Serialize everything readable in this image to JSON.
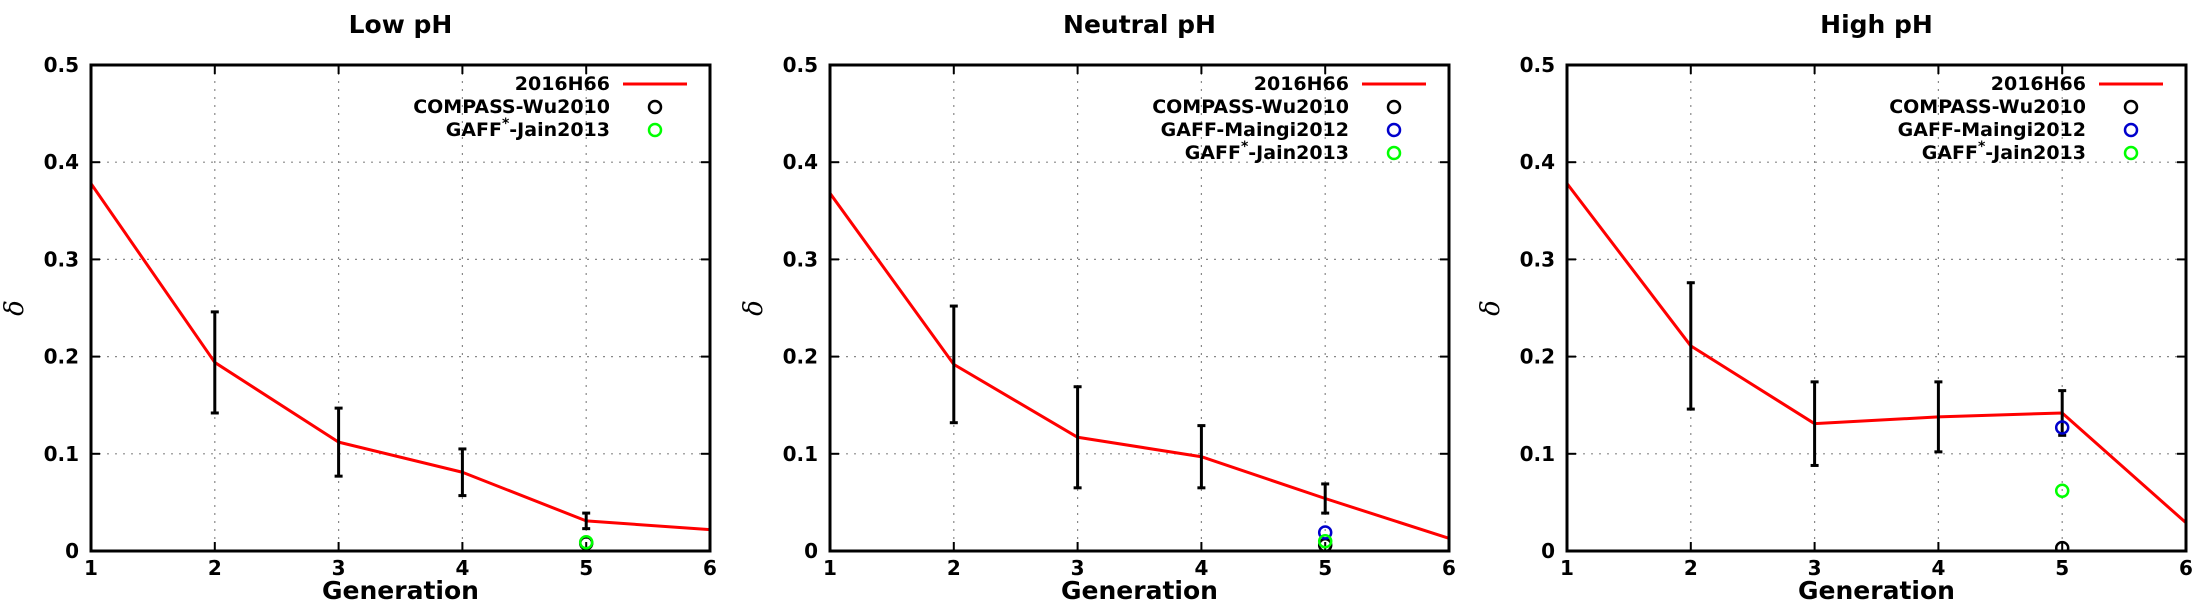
{
  "chart_data": [
    {
      "type": "line",
      "title": "Low pH",
      "xlabel": "Generation",
      "ylabel": "δ",
      "xlim": [
        1,
        6
      ],
      "ylim": [
        0,
        0.5
      ],
      "xticks": [
        "1",
        "2",
        "3",
        "4",
        "5",
        "6"
      ],
      "yticks": [
        "0",
        "0.1",
        "0.2",
        "0.3",
        "0.4",
        "0.5"
      ],
      "grid": true,
      "legend_position": "top-right",
      "series": [
        {
          "name": "2016H66",
          "kind": "line",
          "color": "#ff0000",
          "x": [
            1,
            2,
            3,
            4,
            5,
            6
          ],
          "y": [
            0.378,
            0.194,
            0.112,
            0.081,
            0.031,
            0.022
          ],
          "errors": [
            null,
            0.052,
            0.035,
            0.024,
            0.008,
            null
          ]
        },
        {
          "name": "COMPASS-Wu2010",
          "kind": "scatter",
          "color": "#000000",
          "x": [
            5
          ],
          "y": [
            0.008
          ]
        },
        {
          "name": "GAFF*-Jain2013",
          "name_base": "GAFF",
          "name_sup": "*",
          "name_rest": "-Jain2013",
          "kind": "scatter",
          "color": "#00ff00",
          "x": [
            5
          ],
          "y": [
            0.009
          ]
        }
      ]
    },
    {
      "type": "line",
      "title": "Neutral pH",
      "xlabel": "Generation",
      "ylabel": "δ",
      "xlim": [
        1,
        6
      ],
      "ylim": [
        0,
        0.5
      ],
      "xticks": [
        "1",
        "2",
        "3",
        "4",
        "5",
        "6"
      ],
      "yticks": [
        "0",
        "0.1",
        "0.2",
        "0.3",
        "0.4",
        "0.5"
      ],
      "grid": true,
      "legend_position": "top-right",
      "series": [
        {
          "name": "2016H66",
          "kind": "line",
          "color": "#ff0000",
          "x": [
            1,
            2,
            3,
            4,
            5,
            6
          ],
          "y": [
            0.368,
            0.192,
            0.117,
            0.097,
            0.054,
            0.013
          ],
          "errors": [
            null,
            0.06,
            0.052,
            0.032,
            0.015,
            null
          ]
        },
        {
          "name": "COMPASS-Wu2010",
          "kind": "scatter",
          "color": "#000000",
          "x": [
            5
          ],
          "y": [
            0.006
          ]
        },
        {
          "name": "GAFF-Maingi2012",
          "kind": "scatter",
          "color": "#0000cc",
          "x": [
            5
          ],
          "y": [
            0.019
          ]
        },
        {
          "name": "GAFF*-Jain2013",
          "name_base": "GAFF",
          "name_sup": "*",
          "name_rest": "-Jain2013",
          "kind": "scatter",
          "color": "#00ff00",
          "x": [
            5
          ],
          "y": [
            0.01
          ]
        }
      ]
    },
    {
      "type": "line",
      "title": "High pH",
      "xlabel": "Generation",
      "ylabel": "δ",
      "xlim": [
        1,
        6
      ],
      "ylim": [
        0,
        0.5
      ],
      "xticks": [
        "1",
        "2",
        "3",
        "4",
        "5",
        "6"
      ],
      "yticks": [
        "0",
        "0.1",
        "0.2",
        "0.3",
        "0.4",
        "0.5"
      ],
      "grid": true,
      "legend_position": "top-right",
      "series": [
        {
          "name": "2016H66",
          "kind": "line",
          "color": "#ff0000",
          "x": [
            1,
            2,
            3,
            4,
            5,
            6
          ],
          "y": [
            0.378,
            0.211,
            0.131,
            0.138,
            0.142,
            0.029
          ],
          "errors": [
            null,
            0.065,
            0.043,
            0.036,
            0.023,
            null
          ]
        },
        {
          "name": "COMPASS-Wu2010",
          "kind": "scatter",
          "color": "#000000",
          "x": [
            5
          ],
          "y": [
            0.003
          ]
        },
        {
          "name": "GAFF-Maingi2012",
          "kind": "scatter",
          "color": "#0000cc",
          "x": [
            5
          ],
          "y": [
            0.127
          ]
        },
        {
          "name": "GAFF*-Jain2013",
          "name_base": "GAFF",
          "name_sup": "*",
          "name_rest": "-Jain2013",
          "kind": "scatter",
          "color": "#00ff00",
          "x": [
            5
          ],
          "y": [
            0.062
          ]
        }
      ]
    }
  ]
}
